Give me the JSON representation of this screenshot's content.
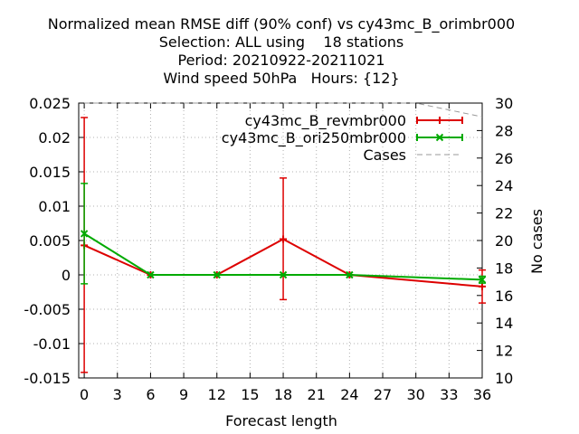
{
  "chart_data": {
    "type": "line",
    "title_lines": [
      "Normalized mean RMSE diff (90% conf) vs cy43mc_B_orimbr000",
      "Selection: ALL using    18 stations",
      "Period: 20210922-20211021",
      "Wind speed 50hPa   Hours: {12}"
    ],
    "xlabel": "Forecast length",
    "ylabel": "",
    "y2label": "No cases",
    "xlim": [
      -0.5,
      36
    ],
    "ylim": [
      -0.015,
      0.025
    ],
    "y2lim": [
      10,
      30
    ],
    "x_ticks": [
      "0",
      "3",
      "6",
      "9",
      "12",
      "15",
      "18",
      "21",
      "24",
      "27",
      "30",
      "33",
      "36"
    ],
    "y_ticks": [
      "-0.015",
      "-0.01",
      "-0.005",
      "0",
      "0.005",
      "0.01",
      "0.015",
      "0.02",
      "0.025"
    ],
    "y2_ticks": [
      "10",
      "12",
      "14",
      "16",
      "18",
      "20",
      "22",
      "24",
      "26",
      "28",
      "30"
    ],
    "grid": true,
    "legend_position": "top-right",
    "series": [
      {
        "name": "cy43mc_B_revmbr000",
        "color": "#dd0000",
        "marker": "plus",
        "x": [
          0,
          6,
          12,
          18,
          24,
          36
        ],
        "y": [
          0.0043,
          0.0,
          0.0,
          0.0052,
          0.0,
          -0.0017
        ],
        "err_low": [
          -0.0142,
          0.0,
          0.0,
          -0.0036,
          0.0,
          -0.0041
        ],
        "err_high": [
          0.0229,
          0.0,
          0.0,
          0.0141,
          0.0,
          0.0007
        ]
      },
      {
        "name": "cy43mc_B_ori250mbr000",
        "color": "#00aa00",
        "marker": "x",
        "x": [
          0,
          6,
          12,
          18,
          24,
          36
        ],
        "y": [
          0.006,
          0.0,
          0.0,
          0.0,
          0.0,
          -0.0007
        ],
        "err_low": [
          -0.0013,
          0.0,
          0.0,
          0.0,
          0.0,
          -0.0012
        ],
        "err_high": [
          0.0133,
          0.0,
          0.0,
          0.0,
          0.0,
          -0.0002
        ]
      },
      {
        "name": "Cases",
        "color": "#999999",
        "dashed": true,
        "axis": "y2",
        "x": [
          0,
          6,
          12,
          18,
          24,
          30,
          36
        ],
        "y": [
          30,
          30,
          30,
          30,
          30,
          30,
          29
        ]
      }
    ]
  }
}
